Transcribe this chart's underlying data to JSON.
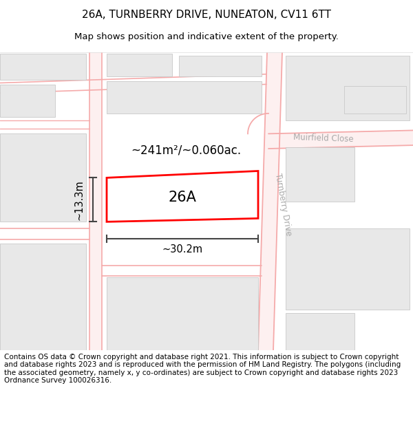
{
  "title_line1": "26A, TURNBERRY DRIVE, NUNEATON, CV11 6TT",
  "title_line2": "Map shows position and indicative extent of the property.",
  "footer_text": "Contains OS data © Crown copyright and database right 2021. This information is subject to Crown copyright and database rights 2023 and is reproduced with the permission of HM Land Registry. The polygons (including the associated geometry, namely x, y co-ordinates) are subject to Crown copyright and database rights 2023 Ordnance Survey 100026316.",
  "bg_color": "#ffffff",
  "map_bg": "#ffffff",
  "road_line_color": "#f5aaaa",
  "road_fill_color": "#fce8e8",
  "building_fill": "#e8e8e8",
  "building_edge": "#c8c8c8",
  "street_label_color": "#aaaaaa",
  "plot_color": "#ff0000",
  "plot_label": "26A",
  "area_label": "~241m²/~0.060ac.",
  "dim_width": "~30.2m",
  "dim_height": "~13.3m",
  "title_fontsize": 11,
  "subtitle_fontsize": 9.5,
  "footer_fontsize": 7.5,
  "map_border_color": "#cccccc"
}
